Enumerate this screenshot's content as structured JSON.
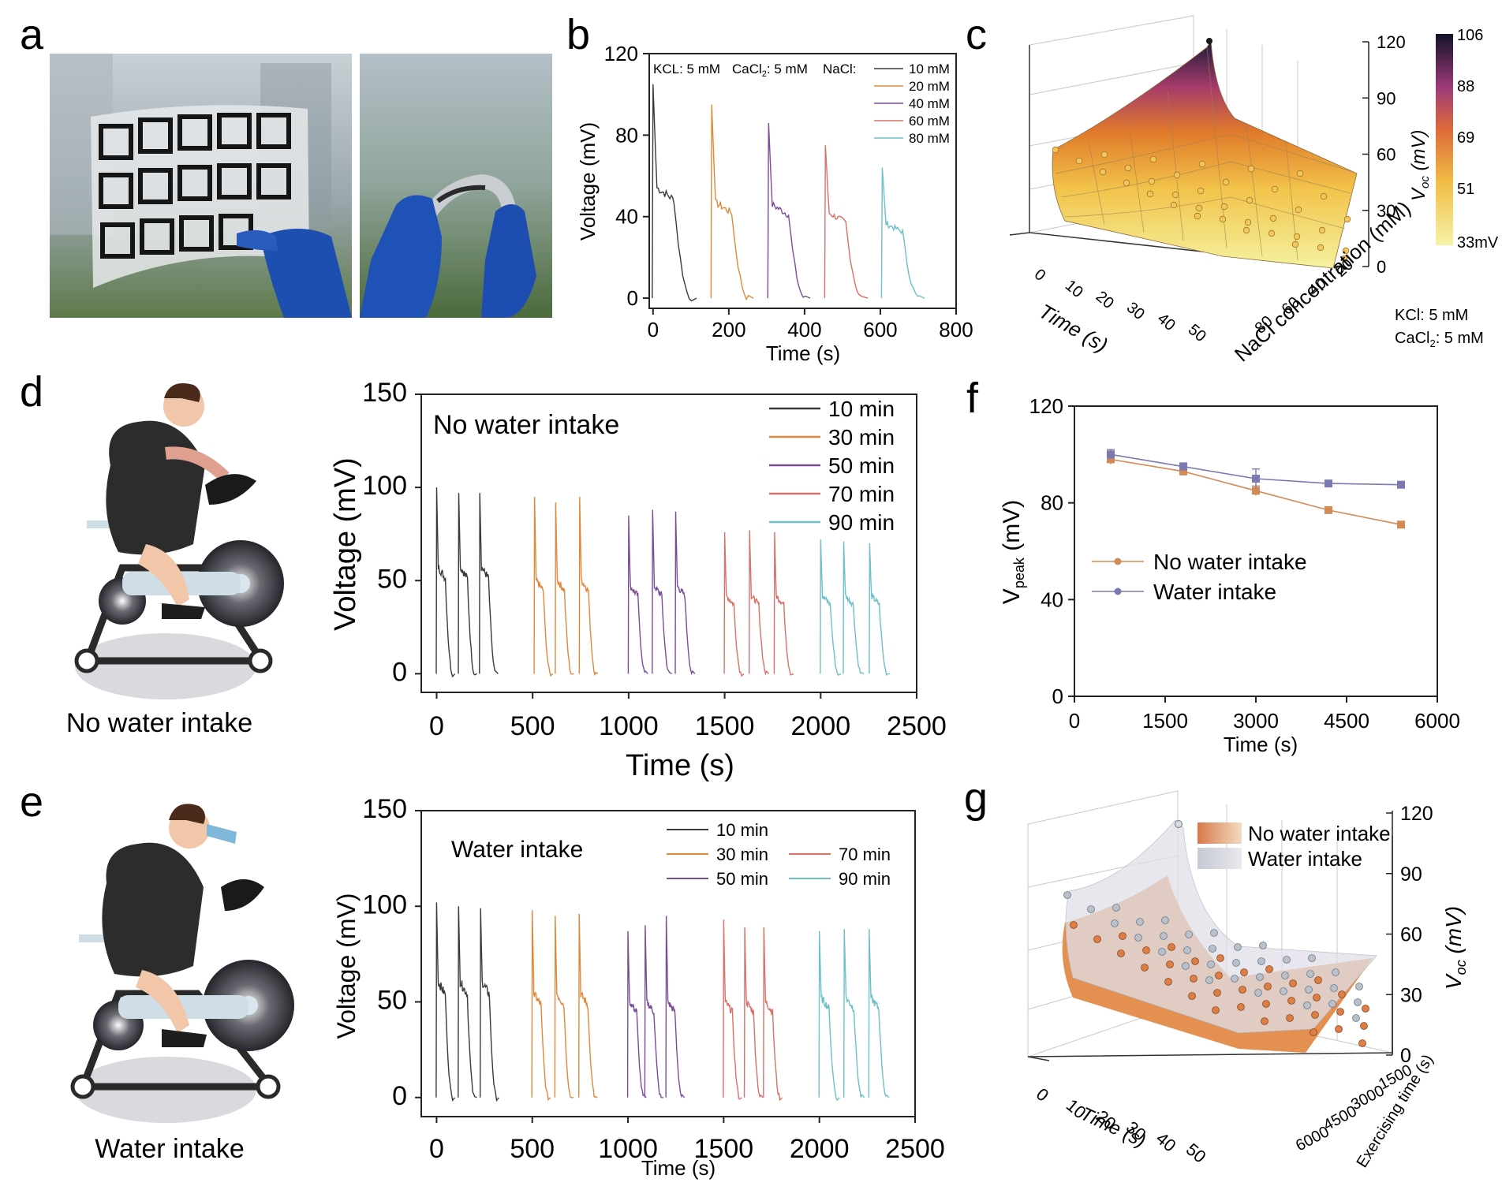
{
  "panels": {
    "a": {
      "label": "a"
    },
    "b": {
      "label": "b"
    },
    "c": {
      "label": "c"
    },
    "d": {
      "label": "d",
      "caption": "No water intake"
    },
    "e": {
      "label": "e",
      "caption": "Water intake"
    },
    "f": {
      "label": "f"
    },
    "g": {
      "label": "g"
    }
  },
  "colors": {
    "dark": "#3a3a3a",
    "orange": "#e0883a",
    "purple": "#7b4b98",
    "red": "#d9706a",
    "teal": "#6cc0c6",
    "f_no_water": "#d48a55",
    "f_water": "#7a7ab0"
  },
  "chart_data": [
    {
      "id": "b",
      "type": "line",
      "xlabel": "Time (s)",
      "ylabel": "Voltage (mV)",
      "xlim": [
        -10,
        800
      ],
      "ylim": [
        -5,
        120
      ],
      "xticks": [
        0,
        200,
        400,
        600,
        800
      ],
      "yticks": [
        0,
        40,
        80,
        120
      ],
      "annotation": {
        "kcl": "KCL: 5 mM",
        "cacl": "CaCl",
        "cacl_sub": "2",
        "cacl_rest": ": 5 mM",
        "nacl": "NaCl:"
      },
      "series": [
        {
          "name": "10 mM",
          "color": "#3a3a3a",
          "start": 0,
          "peak": 105,
          "plateau": 52,
          "duration": 115
        },
        {
          "name": "20 mM",
          "color": "#e0883a",
          "start": 155,
          "peak": 95,
          "plateau": 45,
          "duration": 110
        },
        {
          "name": "40 mM",
          "color": "#7b4b98",
          "start": 305,
          "peak": 86,
          "plateau": 44,
          "duration": 110
        },
        {
          "name": "60 mM",
          "color": "#d9706a",
          "start": 455,
          "peak": 75,
          "plateau": 40,
          "duration": 112
        },
        {
          "name": "80 mM",
          "color": "#6cc0c6",
          "start": 605,
          "peak": 64,
          "plateau": 35,
          "duration": 112
        }
      ]
    },
    {
      "id": "c",
      "type": "surface3d",
      "xlabel": "Time (s)",
      "ylabel": "NaCl concentration (mM)",
      "zlabel": "V",
      "zlabel_sub": "oc",
      "zlabel_unit": " (mV)",
      "xticks": [
        0,
        10,
        20,
        30,
        40,
        50
      ],
      "yticks": [
        20,
        40,
        60,
        80
      ],
      "zticks": [
        0,
        30,
        60,
        90,
        120
      ],
      "colorbar": {
        "min": "33",
        "min_unit": "mV",
        "ticks": [
          "106",
          "88",
          "69",
          "51"
        ]
      },
      "note_kcl": "KCl: 5 mM",
      "note_cacl": "CaCl",
      "note_cacl_sub": "2",
      "note_cacl_rest": ": 5 mM"
    },
    {
      "id": "d",
      "type": "line",
      "title": "No water intake",
      "xlabel": "Time (s)",
      "ylabel": "Voltage (mV)",
      "xlim": [
        -80,
        2500
      ],
      "ylim": [
        -10,
        150
      ],
      "xticks": [
        0,
        500,
        1000,
        1500,
        2000,
        2500
      ],
      "yticks": [
        0,
        50,
        100,
        150
      ],
      "series": [
        {
          "name": "10 min",
          "color": "#3a3a3a",
          "starts": [
            0,
            115,
            225
          ],
          "peak": [
            100,
            97,
            97
          ],
          "plateau": 55,
          "duration": 95
        },
        {
          "name": "30 min",
          "color": "#e0883a",
          "starts": [
            510,
            620,
            745
          ],
          "peak": [
            95,
            92,
            95
          ],
          "plateau": 48,
          "duration": 95
        },
        {
          "name": "50 min",
          "color": "#7b4b98",
          "starts": [
            1000,
            1125,
            1245
          ],
          "peak": [
            85,
            88,
            87
          ],
          "plateau": 45,
          "duration": 100
        },
        {
          "name": "70 min",
          "color": "#d9706a",
          "starts": [
            1500,
            1630,
            1760
          ],
          "peak": [
            76,
            77,
            76
          ],
          "plateau": 40,
          "duration": 100
        },
        {
          "name": "90 min",
          "color": "#6cc0c6",
          "starts": [
            2000,
            2120,
            2255
          ],
          "peak": [
            72,
            71,
            70
          ],
          "plateau": 40,
          "duration": 105
        }
      ]
    },
    {
      "id": "e",
      "type": "line",
      "title": "Water intake",
      "xlabel": "Time (s)",
      "ylabel": "Voltage (mV)",
      "xlim": [
        -80,
        2500
      ],
      "ylim": [
        -10,
        150
      ],
      "xticks": [
        0,
        500,
        1000,
        1500,
        2000,
        2500
      ],
      "yticks": [
        0,
        50,
        100,
        150
      ],
      "series": [
        {
          "name": "10 min",
          "color": "#3a3a3a",
          "starts": [
            0,
            115,
            230
          ],
          "peak": [
            102,
            100,
            99
          ],
          "plateau": 58,
          "duration": 95
        },
        {
          "name": "30 min",
          "color": "#e0883a",
          "starts": [
            500,
            620,
            745
          ],
          "peak": [
            98,
            95,
            96
          ],
          "plateau": 52,
          "duration": 95
        },
        {
          "name": "70 min",
          "color": "#d9706a",
          "starts": [
            1500,
            1610,
            1710
          ],
          "peak": [
            93,
            89,
            89
          ],
          "plateau": 48,
          "duration": 95
        },
        {
          "name": "50 min",
          "color": "#7b4b98",
          "starts": [
            1000,
            1090,
            1200
          ],
          "peak": [
            87,
            90,
            95
          ],
          "plateau": 48,
          "duration": 95
        },
        {
          "name": "90 min",
          "color": "#6cc0c6",
          "starts": [
            2000,
            2130,
            2260
          ],
          "peak": [
            87,
            88,
            88
          ],
          "plateau": 50,
          "duration": 105
        }
      ]
    },
    {
      "id": "f",
      "type": "line",
      "xlabel": "Time (s)",
      "ylabel": "V",
      "ylabel_sub": "peak",
      "ylabel_unit": " (mV)",
      "xlim": [
        0,
        6000
      ],
      "ylim": [
        0,
        120
      ],
      "xticks": [
        0,
        1500,
        3000,
        4500,
        6000
      ],
      "yticks": [
        0,
        40,
        80,
        120
      ],
      "x": [
        600,
        1800,
        3000,
        4200,
        5400
      ],
      "series": [
        {
          "name": "No water intake",
          "color": "#d48a55",
          "values": [
            98,
            93,
            85,
            77,
            71
          ],
          "err": [
            2,
            1.5,
            2,
            1,
            1
          ]
        },
        {
          "name": "Water intake",
          "color": "#7a7ab0",
          "values": [
            100,
            95,
            90,
            88,
            87.5
          ],
          "err": [
            2,
            1.5,
            4,
            1,
            1
          ]
        }
      ]
    },
    {
      "id": "g",
      "type": "surface3d",
      "xlabel": "Time (s)",
      "ylabel": "Exercising time (s)",
      "zlabel": "V",
      "zlabel_sub": "oc",
      "zlabel_unit": " (mV)",
      "xticks": [
        0,
        10,
        20,
        30,
        40,
        50
      ],
      "yticks": [
        1500,
        3000,
        4500,
        6000
      ],
      "zticks": [
        0,
        30,
        60,
        90,
        120
      ],
      "legend": [
        "No water intake",
        "Water intake"
      ]
    }
  ]
}
